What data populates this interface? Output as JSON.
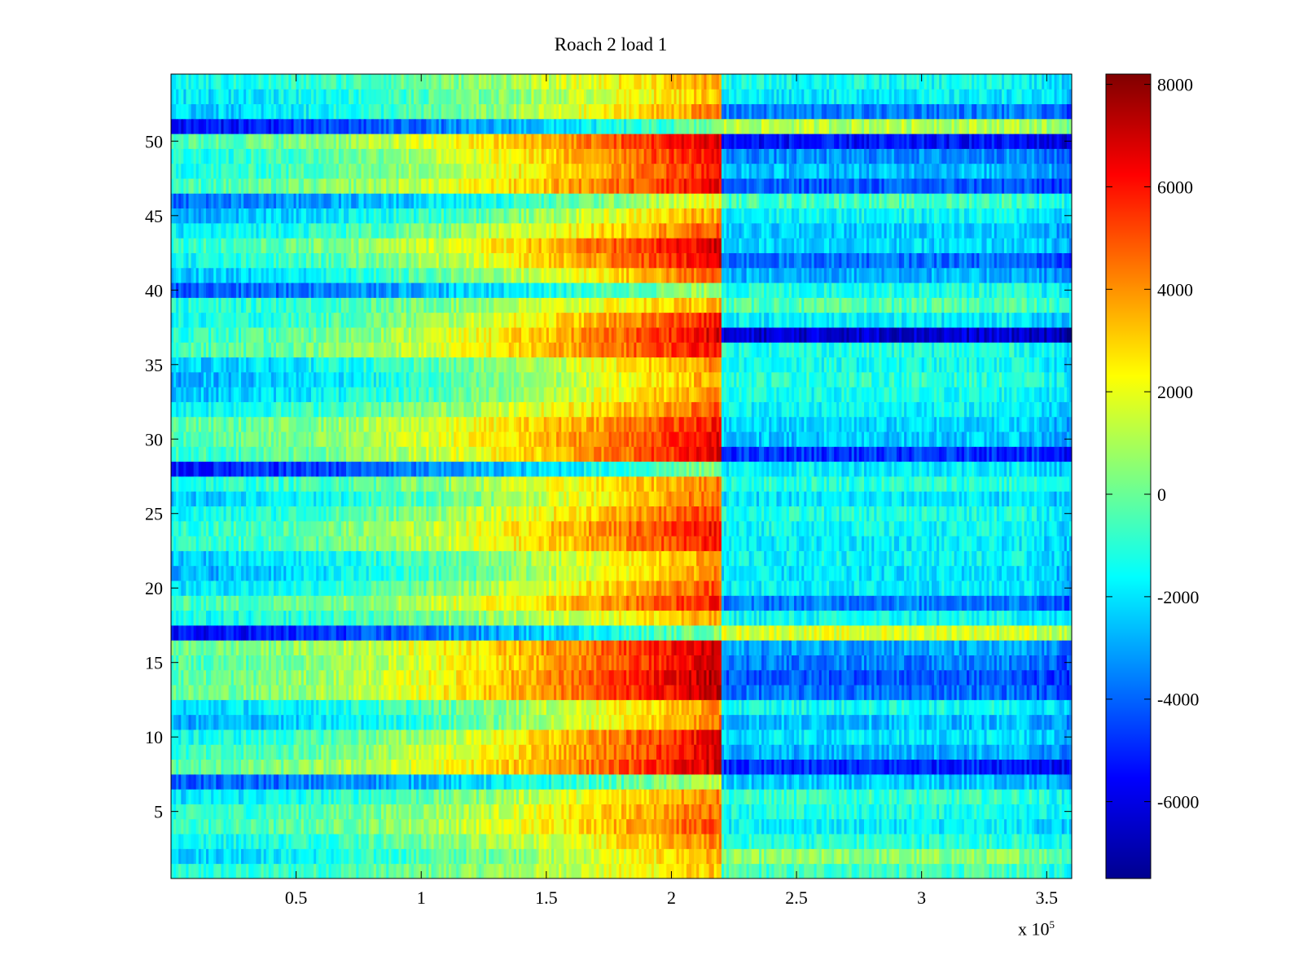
{
  "chart_data": {
    "type": "heatmap",
    "title": "Roach 2 load 1",
    "x_multiplier": "x 10",
    "x_multiplier_exponent": "5",
    "xlim": [
      0,
      3.6
    ],
    "ylim": [
      0.5,
      54.5
    ],
    "x_ticks": [
      0.5,
      1,
      1.5,
      2,
      2.5,
      3,
      3.5
    ],
    "y_ticks": [
      5,
      10,
      15,
      20,
      25,
      30,
      35,
      40,
      45,
      50
    ],
    "x_break": 2.2,
    "colorbar": {
      "colormap": "jet",
      "range": [
        -7500,
        8200
      ],
      "ticks": [
        8000,
        6000,
        4000,
        2000,
        0,
        -2000,
        -4000,
        -6000
      ]
    },
    "rows": [
      {
        "y": 1,
        "base": -1200,
        "peak": 3200,
        "after": -600
      },
      {
        "y": 2,
        "base": -2200,
        "peak": 3600,
        "after": 500
      },
      {
        "y": 3,
        "base": -1500,
        "peak": 4200,
        "after": -1000
      },
      {
        "y": 4,
        "base": -800,
        "peak": 5200,
        "after": -1800
      },
      {
        "y": 5,
        "base": -1000,
        "peak": 4700,
        "after": -1200
      },
      {
        "y": 6,
        "base": -2000,
        "peak": 4400,
        "after": -800
      },
      {
        "y": 7,
        "base": -4200,
        "peak": 1200,
        "after": -2500
      },
      {
        "y": 8,
        "base": -300,
        "peak": 7000,
        "after": -5000
      },
      {
        "y": 9,
        "base": -900,
        "peak": 6700,
        "after": -2800
      },
      {
        "y": 10,
        "base": -1500,
        "peak": 6600,
        "after": -2000
      },
      {
        "y": 11,
        "base": -3000,
        "peak": 4400,
        "after": -2600
      },
      {
        "y": 12,
        "base": -2200,
        "peak": 4000,
        "after": -1400
      },
      {
        "y": 13,
        "base": 0,
        "peak": 7300,
        "after": -3800
      },
      {
        "y": 14,
        "base": -200,
        "peak": 7500,
        "after": -4200
      },
      {
        "y": 15,
        "base": -400,
        "peak": 7000,
        "after": -3600
      },
      {
        "y": 16,
        "base": 0,
        "peak": 7000,
        "after": -3000
      },
      {
        "y": 17,
        "base": -5600,
        "peak": 500,
        "after": 1800
      },
      {
        "y": 18,
        "base": -1500,
        "peak": 3600,
        "after": -1500
      },
      {
        "y": 19,
        "base": -600,
        "peak": 6000,
        "after": -3600
      },
      {
        "y": 20,
        "base": -2000,
        "peak": 5200,
        "after": -1800
      },
      {
        "y": 21,
        "base": -2800,
        "peak": 4200,
        "after": -2000
      },
      {
        "y": 22,
        "base": -2400,
        "peak": 4000,
        "after": -1600
      },
      {
        "y": 23,
        "base": -1000,
        "peak": 6000,
        "after": -1800
      },
      {
        "y": 24,
        "base": -900,
        "peak": 6400,
        "after": -1500
      },
      {
        "y": 25,
        "base": -1500,
        "peak": 5400,
        "after": -1200
      },
      {
        "y": 26,
        "base": -2400,
        "peak": 4800,
        "after": -2000
      },
      {
        "y": 27,
        "base": -1200,
        "peak": 4400,
        "after": -1000
      },
      {
        "y": 28,
        "base": -5200,
        "peak": 500,
        "after": -1800
      },
      {
        "y": 29,
        "base": -800,
        "peak": 6600,
        "after": -4800
      },
      {
        "y": 30,
        "base": -400,
        "peak": 6600,
        "after": -2400
      },
      {
        "y": 31,
        "base": -300,
        "peak": 6000,
        "after": -2200
      },
      {
        "y": 32,
        "base": -1500,
        "peak": 5000,
        "after": -1600
      },
      {
        "y": 33,
        "base": -2500,
        "peak": 4200,
        "after": -1400
      },
      {
        "y": 34,
        "base": -2800,
        "peak": 3800,
        "after": -1000
      },
      {
        "y": 35,
        "base": -2400,
        "peak": 4200,
        "after": -1400
      },
      {
        "y": 36,
        "base": -500,
        "peak": 6400,
        "after": -1200
      },
      {
        "y": 37,
        "base": -900,
        "peak": 6800,
        "after": -6200
      },
      {
        "y": 38,
        "base": -1500,
        "peak": 6000,
        "after": -1800
      },
      {
        "y": 39,
        "base": -1200,
        "peak": 3600,
        "after": -400
      },
      {
        "y": 40,
        "base": -4200,
        "peak": 1000,
        "after": -1200
      },
      {
        "y": 41,
        "base": -2500,
        "peak": 5000,
        "after": -2800
      },
      {
        "y": 42,
        "base": -1500,
        "peak": 6600,
        "after": -3800
      },
      {
        "y": 43,
        "base": -800,
        "peak": 7000,
        "after": -2200
      },
      {
        "y": 44,
        "base": -1800,
        "peak": 5000,
        "after": -2400
      },
      {
        "y": 45,
        "base": -2800,
        "peak": 3800,
        "after": -1600
      },
      {
        "y": 46,
        "base": -3800,
        "peak": 2200,
        "after": -600
      },
      {
        "y": 47,
        "base": -600,
        "peak": 6600,
        "after": -4200
      },
      {
        "y": 48,
        "base": -1200,
        "peak": 6000,
        "after": -2600
      },
      {
        "y": 49,
        "base": -1200,
        "peak": 6400,
        "after": -3400
      },
      {
        "y": 50,
        "base": -400,
        "peak": 7000,
        "after": -5400
      },
      {
        "y": 51,
        "base": -5400,
        "peak": 200,
        "after": 1200
      },
      {
        "y": 52,
        "base": -2400,
        "peak": 4400,
        "after": -3600
      },
      {
        "y": 53,
        "base": -2000,
        "peak": 3400,
        "after": -1800
      },
      {
        "y": 54,
        "base": -1500,
        "peak": 3800,
        "after": -1400
      }
    ]
  }
}
